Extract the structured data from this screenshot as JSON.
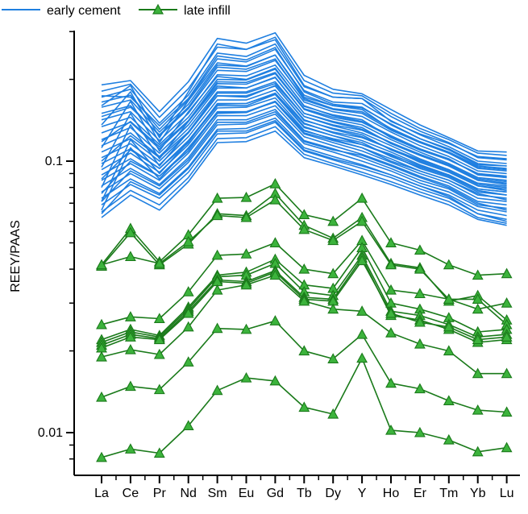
{
  "chart_data": {
    "type": "line",
    "title": "",
    "xlabel": "",
    "ylabel": "REEY/PAAS",
    "yscale": "log",
    "ylim": [
      0.0074,
      0.45
    ],
    "yticks": [
      {
        "value": 0.1,
        "label": "0.1"
      },
      {
        "value": 0.01,
        "label": "0.01"
      }
    ],
    "grid": false,
    "legend_position": "top-left",
    "categories": [
      "La",
      "Ce",
      "Pr",
      "Nd",
      "Sm",
      "Eu",
      "Gd",
      "Tb",
      "Dy",
      "Y",
      "Ho",
      "Er",
      "Tm",
      "Yb",
      "Lu"
    ],
    "groups": [
      {
        "name": "early cement",
        "color": "#1f7fe0",
        "marker": "none",
        "series": [
          [
            0.191,
            0.198,
            0.152,
            0.196,
            0.283,
            0.272,
            0.297,
            0.207,
            0.184,
            0.177,
            0.155,
            0.136,
            0.122,
            0.109,
            0.108
          ],
          [
            0.181,
            0.192,
            0.145,
            0.185,
            0.263,
            0.258,
            0.286,
            0.198,
            0.178,
            0.174,
            0.15,
            0.132,
            0.12,
            0.107,
            0.105
          ],
          [
            0.172,
            0.184,
            0.138,
            0.175,
            0.25,
            0.243,
            0.27,
            0.188,
            0.172,
            0.17,
            0.146,
            0.129,
            0.117,
            0.103,
            0.101
          ],
          [
            0.165,
            0.175,
            0.131,
            0.168,
            0.238,
            0.232,
            0.258,
            0.182,
            0.165,
            0.163,
            0.141,
            0.125,
            0.113,
            0.1,
            0.098
          ],
          [
            0.158,
            0.168,
            0.128,
            0.162,
            0.226,
            0.223,
            0.246,
            0.175,
            0.16,
            0.157,
            0.137,
            0.121,
            0.11,
            0.097,
            0.096
          ],
          [
            0.15,
            0.16,
            0.124,
            0.156,
            0.216,
            0.214,
            0.235,
            0.17,
            0.156,
            0.152,
            0.132,
            0.118,
            0.107,
            0.095,
            0.093
          ],
          [
            0.142,
            0.152,
            0.119,
            0.15,
            0.208,
            0.206,
            0.226,
            0.165,
            0.152,
            0.146,
            0.128,
            0.114,
            0.104,
            0.092,
            0.09
          ],
          [
            0.134,
            0.145,
            0.115,
            0.145,
            0.2,
            0.199,
            0.218,
            0.16,
            0.147,
            0.14,
            0.124,
            0.111,
            0.101,
            0.09,
            0.088
          ],
          [
            0.127,
            0.139,
            0.111,
            0.14,
            0.193,
            0.192,
            0.21,
            0.155,
            0.143,
            0.136,
            0.12,
            0.108,
            0.098,
            0.087,
            0.085
          ],
          [
            0.12,
            0.133,
            0.107,
            0.136,
            0.186,
            0.186,
            0.203,
            0.15,
            0.139,
            0.131,
            0.117,
            0.105,
            0.096,
            0.085,
            0.083
          ],
          [
            0.114,
            0.127,
            0.104,
            0.132,
            0.18,
            0.18,
            0.196,
            0.146,
            0.135,
            0.127,
            0.114,
            0.102,
            0.093,
            0.083,
            0.081
          ],
          [
            0.108,
            0.121,
            0.1,
            0.127,
            0.174,
            0.174,
            0.189,
            0.142,
            0.131,
            0.123,
            0.111,
            0.099,
            0.091,
            0.081,
            0.079
          ],
          [
            0.103,
            0.116,
            0.097,
            0.123,
            0.168,
            0.168,
            0.183,
            0.138,
            0.127,
            0.119,
            0.108,
            0.097,
            0.089,
            0.079,
            0.077
          ],
          [
            0.098,
            0.111,
            0.094,
            0.119,
            0.162,
            0.163,
            0.177,
            0.134,
            0.124,
            0.115,
            0.105,
            0.094,
            0.087,
            0.077,
            0.075
          ],
          [
            0.093,
            0.107,
            0.091,
            0.115,
            0.157,
            0.158,
            0.171,
            0.13,
            0.12,
            0.112,
            0.102,
            0.092,
            0.085,
            0.075,
            0.073
          ],
          [
            0.089,
            0.102,
            0.088,
            0.111,
            0.152,
            0.152,
            0.165,
            0.126,
            0.117,
            0.109,
            0.099,
            0.09,
            0.083,
            0.073,
            0.071
          ],
          [
            0.085,
            0.098,
            0.085,
            0.107,
            0.147,
            0.147,
            0.16,
            0.123,
            0.114,
            0.106,
            0.097,
            0.088,
            0.081,
            0.071,
            0.069
          ],
          [
            0.081,
            0.094,
            0.082,
            0.103,
            0.142,
            0.142,
            0.155,
            0.119,
            0.111,
            0.103,
            0.094,
            0.085,
            0.079,
            0.069,
            0.067
          ],
          [
            0.077,
            0.09,
            0.079,
            0.099,
            0.136,
            0.137,
            0.149,
            0.116,
            0.108,
            0.1,
            0.092,
            0.083,
            0.077,
            0.068,
            0.065
          ],
          [
            0.073,
            0.086,
            0.076,
            0.095,
            0.131,
            0.132,
            0.144,
            0.112,
            0.104,
            0.097,
            0.089,
            0.081,
            0.075,
            0.066,
            0.063
          ],
          [
            0.069,
            0.082,
            0.073,
            0.091,
            0.126,
            0.127,
            0.139,
            0.109,
            0.101,
            0.094,
            0.087,
            0.079,
            0.073,
            0.064,
            0.061
          ],
          [
            0.065,
            0.078,
            0.069,
            0.087,
            0.121,
            0.122,
            0.134,
            0.106,
            0.098,
            0.091,
            0.084,
            0.077,
            0.071,
            0.062,
            0.059
          ],
          [
            0.062,
            0.075,
            0.066,
            0.084,
            0.117,
            0.118,
            0.129,
            0.103,
            0.096,
            0.089,
            0.082,
            0.075,
            0.069,
            0.061,
            0.058
          ],
          [
            0.16,
            0.19,
            0.122,
            0.18,
            0.27,
            0.258,
            0.28,
            0.19,
            0.172,
            0.17,
            0.14,
            0.126,
            0.116,
            0.104,
            0.102
          ],
          [
            0.136,
            0.18,
            0.117,
            0.167,
            0.23,
            0.224,
            0.246,
            0.172,
            0.16,
            0.155,
            0.131,
            0.118,
            0.108,
            0.096,
            0.094
          ],
          [
            0.112,
            0.166,
            0.109,
            0.152,
            0.205,
            0.2,
            0.22,
            0.159,
            0.148,
            0.142,
            0.122,
            0.11,
            0.101,
            0.09,
            0.087
          ],
          [
            0.095,
            0.15,
            0.102,
            0.14,
            0.189,
            0.186,
            0.204,
            0.15,
            0.14,
            0.133,
            0.116,
            0.105,
            0.096,
            0.085,
            0.082
          ],
          [
            0.08,
            0.136,
            0.096,
            0.128,
            0.174,
            0.172,
            0.19,
            0.141,
            0.132,
            0.125,
            0.11,
            0.1,
            0.092,
            0.081,
            0.078
          ],
          [
            0.071,
            0.12,
            0.09,
            0.118,
            0.16,
            0.16,
            0.176,
            0.133,
            0.124,
            0.117,
            0.104,
            0.095,
            0.088,
            0.078,
            0.075
          ],
          [
            0.066,
            0.112,
            0.086,
            0.112,
            0.15,
            0.151,
            0.166,
            0.127,
            0.119,
            0.112,
            0.1,
            0.092,
            0.085,
            0.076,
            0.072
          ],
          [
            0.174,
            0.172,
            0.135,
            0.17,
            0.244,
            0.236,
            0.262,
            0.18,
            0.162,
            0.158,
            0.136,
            0.121,
            0.111,
            0.098,
            0.096
          ],
          [
            0.146,
            0.158,
            0.125,
            0.158,
            0.222,
            0.218,
            0.238,
            0.168,
            0.155,
            0.15,
            0.13,
            0.117,
            0.107,
            0.094,
            0.092
          ],
          [
            0.118,
            0.14,
            0.113,
            0.141,
            0.196,
            0.195,
            0.212,
            0.156,
            0.145,
            0.139,
            0.123,
            0.111,
            0.102,
            0.089,
            0.087
          ],
          [
            0.1,
            0.124,
            0.103,
            0.128,
            0.178,
            0.178,
            0.193,
            0.146,
            0.136,
            0.13,
            0.117,
            0.106,
            0.097,
            0.086,
            0.084
          ],
          [
            0.086,
            0.11,
            0.094,
            0.117,
            0.163,
            0.163,
            0.178,
            0.137,
            0.128,
            0.122,
            0.111,
            0.101,
            0.093,
            0.082,
            0.08
          ],
          [
            0.076,
            0.1,
            0.088,
            0.109,
            0.151,
            0.152,
            0.166,
            0.129,
            0.121,
            0.115,
            0.106,
            0.096,
            0.089,
            0.079,
            0.077
          ],
          [
            0.071,
            0.092,
            0.081,
            0.101,
            0.139,
            0.139,
            0.152,
            0.118,
            0.11,
            0.105,
            0.096,
            0.087,
            0.08,
            0.07,
            0.066
          ],
          [
            0.064,
            0.084,
            0.075,
            0.094,
            0.129,
            0.129,
            0.141,
            0.11,
            0.102,
            0.096,
            0.089,
            0.081,
            0.074,
            0.064,
            0.06
          ]
        ]
      },
      {
        "name": "late infill",
        "color": "#1a7a1a",
        "marker": "triangle",
        "marker_fill": "#3cb33c",
        "series": [
          [
            0.0415,
            0.0565,
            0.0426,
            0.0535,
            0.073,
            0.0735,
            0.0825,
            0.0635,
            0.06,
            0.073,
            0.05,
            0.047,
            0.0415,
            0.038,
            0.0385
          ],
          [
            0.041,
            0.0545,
            0.0415,
            0.0495,
            0.064,
            0.063,
            0.076,
            0.058,
            0.052,
            0.062,
            0.042,
            0.0405,
            0.0305,
            0.032,
            0.026
          ],
          [
            0.0415,
            0.0445,
            0.042,
            0.0505,
            0.063,
            0.062,
            0.072,
            0.056,
            0.051,
            0.06,
            0.0415,
            0.04,
            0.031,
            0.031,
            0.025
          ],
          [
            0.025,
            0.0267,
            0.0263,
            0.033,
            0.045,
            0.0455,
            0.05,
            0.04,
            0.0385,
            0.051,
            0.0335,
            0.0325,
            0.031,
            0.0285,
            0.03
          ],
          [
            0.022,
            0.024,
            0.0228,
            0.029,
            0.038,
            0.039,
            0.0435,
            0.035,
            0.034,
            0.048,
            0.03,
            0.0285,
            0.0265,
            0.0235,
            0.024
          ],
          [
            0.0215,
            0.0235,
            0.0225,
            0.0285,
            0.0375,
            0.038,
            0.042,
            0.033,
            0.032,
            0.045,
            0.028,
            0.027,
            0.025,
            0.0225,
            0.023
          ],
          [
            0.021,
            0.023,
            0.0222,
            0.028,
            0.0365,
            0.036,
            0.0395,
            0.0315,
            0.031,
            0.044,
            0.027,
            0.026,
            0.024,
            0.0215,
            0.022
          ],
          [
            0.0205,
            0.0225,
            0.022,
            0.0275,
            0.036,
            0.0355,
            0.039,
            0.031,
            0.0305,
            0.043,
            0.0275,
            0.0255,
            0.0245,
            0.022,
            0.0225
          ],
          [
            0.019,
            0.0202,
            0.0194,
            0.0245,
            0.0335,
            0.035,
            0.038,
            0.0305,
            0.0285,
            0.028,
            0.0233,
            0.0212,
            0.02,
            0.0165,
            0.0165
          ],
          [
            0.0135,
            0.0148,
            0.0144,
            0.0182,
            0.0242,
            0.024,
            0.0258,
            0.02,
            0.0187,
            0.023,
            0.0152,
            0.0145,
            0.0131,
            0.0121,
            0.0119
          ],
          [
            0.0081,
            0.0087,
            0.0084,
            0.0106,
            0.0143,
            0.0159,
            0.0155,
            0.0124,
            0.0117,
            0.0188,
            0.0102,
            0.01,
            0.0094,
            0.0085,
            0.0088
          ]
        ]
      }
    ]
  }
}
